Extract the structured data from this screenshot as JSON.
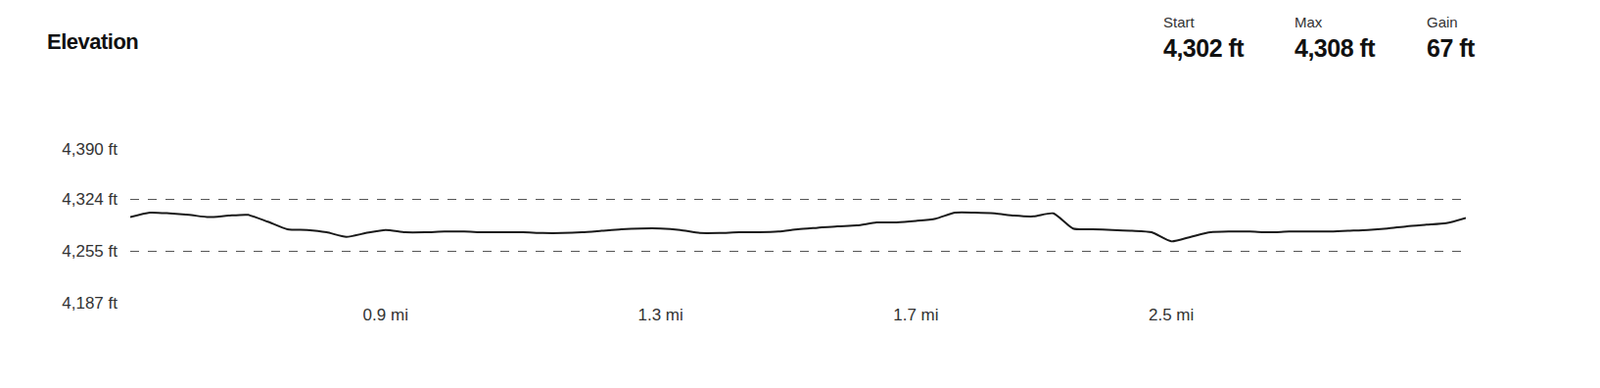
{
  "chart_data": {
    "type": "line",
    "title": "Elevation",
    "categories": [
      null,
      null,
      null,
      null,
      null,
      null,
      null,
      null,
      null,
      null,
      null,
      null,
      null,
      "0.9 mi",
      null,
      null,
      null,
      null,
      null,
      null,
      null,
      null,
      null,
      null,
      null,
      null,
      null,
      "1.3 mi",
      null,
      null,
      null,
      null,
      null,
      null,
      null,
      null,
      null,
      null,
      null,
      null,
      "1.7 mi",
      null,
      null,
      null,
      null,
      null,
      null,
      null,
      null,
      null,
      null,
      null,
      null,
      "2.5 mi",
      null,
      null,
      null,
      null,
      null,
      null,
      null,
      null,
      null,
      null,
      null,
      null,
      null,
      null,
      null
    ],
    "values": [
      4300,
      4306,
      4305,
      4303,
      4300,
      4302,
      4303,
      4294,
      4284,
      4283,
      4280,
      4274,
      4279,
      4283,
      4280,
      4280,
      4281,
      4281,
      4280,
      4280,
      4280,
      4279,
      4279,
      4280,
      4282,
      4284,
      4285,
      4285,
      4283,
      4279,
      4279,
      4280,
      4280,
      4281,
      4284,
      4286,
      4288,
      4289,
      4293,
      4293,
      4295,
      4298,
      4306,
      4306,
      4305,
      4302,
      4301,
      4305,
      4285,
      4284,
      4283,
      4282,
      4280,
      4268,
      4274,
      4280,
      4281,
      4281,
      4280,
      4281,
      4281,
      4281,
      4282,
      4283,
      4285,
      4288,
      4290,
      4292,
      4299
    ],
    "color": "#1a1a1a",
    "ylim": [
      4187,
      4390
    ],
    "yticks": [
      {
        "value": 4187,
        "label": "4,187 ft"
      },
      {
        "value": 4255,
        "label": "4,255 ft"
      },
      {
        "value": 4324,
        "label": "4,324 ft"
      },
      {
        "value": 4390,
        "label": "4,390 ft"
      }
    ],
    "grid": true
  },
  "stats": [
    {
      "label": "Start",
      "value": "4,302 ft"
    },
    {
      "label": "Max",
      "value": "4,308 ft"
    },
    {
      "label": "Gain",
      "value": "67 ft"
    }
  ]
}
